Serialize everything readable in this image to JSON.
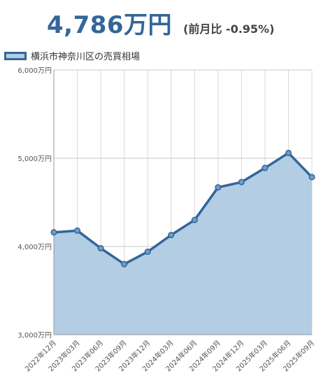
{
  "header": {
    "price": "4,786万円",
    "change": "(前月比 -0.95%)"
  },
  "colors": {
    "accent": "#336699",
    "fill": "#b3cde4",
    "grid": "#d8d8d8"
  },
  "chart_data": {
    "type": "area",
    "legend": "横浜市神奈川区の売買相場",
    "legend_position": "top-left",
    "grid": true,
    "categories": [
      "2022年12月",
      "2023年03月",
      "2023年06月",
      "2023年09月",
      "2023年12月",
      "2024年03月",
      "2024年06月",
      "2024年09月",
      "2024年12月",
      "2025年03月",
      "2025年06月",
      "2025年09月"
    ],
    "values": [
      4160,
      4180,
      3980,
      3800,
      3940,
      4130,
      4300,
      4670,
      4730,
      4890,
      5060,
      4786
    ],
    "yticks": [
      3000,
      4000,
      5000,
      6000
    ],
    "ytick_labels": [
      "3,000万円",
      "4,000万円",
      "5,000万円",
      "6,000万円"
    ],
    "ylim": [
      3000,
      6000
    ]
  }
}
